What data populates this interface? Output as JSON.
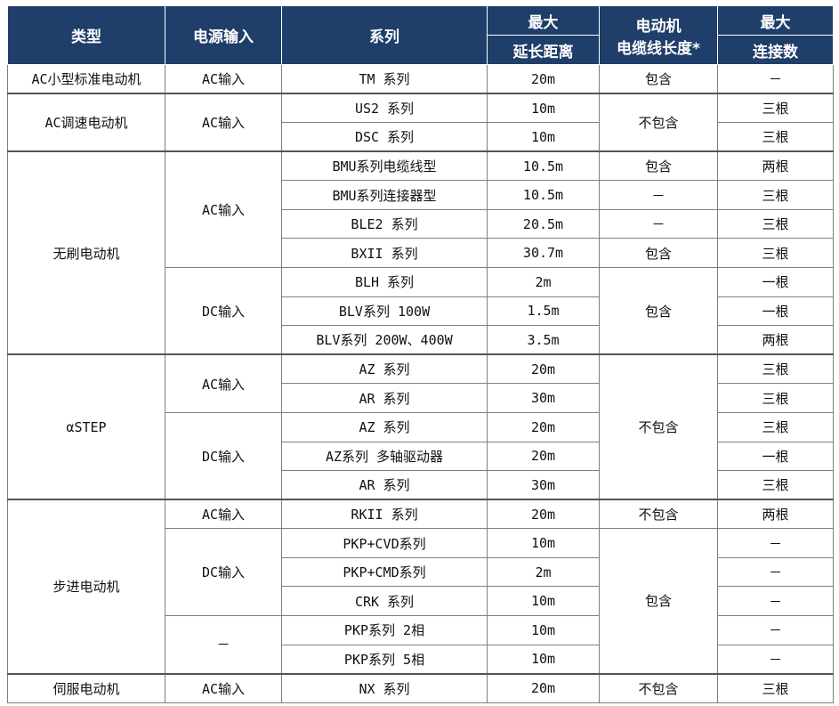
{
  "header": {
    "type": "类型",
    "power_input": "电源输入",
    "series": "系列",
    "max_top": "最大",
    "max_distance": "延长距离",
    "motor_cable_l1": "电动机",
    "motor_cable_l2": "电缆线长度*",
    "max_top2": "最大",
    "max_connections": "连接数"
  },
  "groups": [
    {
      "type": "AC小型标准电动机",
      "inputs": [
        {
          "input": "AC输入",
          "rows": [
            [
              "TM 系列",
              "20m",
              "包含",
              "－"
            ]
          ]
        }
      ]
    },
    {
      "type": "AC调速电动机",
      "inputs": [
        {
          "input": "AC输入",
          "rows": [
            [
              "US2 系列",
              "10m",
              "不包含",
              "三根"
            ],
            [
              "DSC 系列",
              "10m",
              "",
              "三根"
            ]
          ]
        }
      ]
    },
    {
      "type": "无刷电动机",
      "inputs": [
        {
          "input": "AC输入",
          "rows": [
            [
              "BMU系列电缆线型",
              "10.5m",
              "包含",
              "两根"
            ],
            [
              "BMU系列连接器型",
              "10.5m",
              "－",
              "三根"
            ],
            [
              "BLE2 系列",
              "20.5m",
              "－",
              "三根"
            ],
            [
              "BXII 系列",
              "30.7m",
              "包含",
              "三根"
            ]
          ]
        },
        {
          "input": "DC输入",
          "rows": [
            [
              "BLH 系列",
              "2m",
              "包含",
              "一根"
            ],
            [
              "BLV系列 100W",
              "1.5m",
              "",
              "一根"
            ],
            [
              "BLV系列 200W、400W",
              "3.5m",
              "",
              "两根"
            ]
          ]
        }
      ]
    },
    {
      "type": "αSTEP",
      "inputs": [
        {
          "input": "AC输入",
          "rows": [
            [
              "AZ 系列",
              "20m",
              "不包含",
              "三根"
            ],
            [
              "AR 系列",
              "30m",
              "",
              "三根"
            ]
          ]
        },
        {
          "input": "DC输入",
          "rows": [
            [
              "AZ 系列",
              "20m",
              "",
              "三根"
            ],
            [
              "AZ系列 多轴驱动器",
              "20m",
              "",
              "一根"
            ],
            [
              "AR 系列",
              "30m",
              "",
              "三根"
            ]
          ]
        }
      ]
    },
    {
      "type": "步进电动机",
      "inputs": [
        {
          "input": "AC输入",
          "rows": [
            [
              "RKII 系列",
              "20m",
              "不包含",
              "两根"
            ]
          ]
        },
        {
          "input": "DC输入",
          "rows": [
            [
              "PKP+CVD系列",
              "10m",
              "包含",
              "－"
            ],
            [
              "PKP+CMD系列",
              "2m",
              "",
              "－"
            ],
            [
              "CRK 系列",
              "10m",
              "",
              "－"
            ]
          ]
        },
        {
          "input": "－",
          "rows": [
            [
              "PKP系列 2相",
              "10m",
              "",
              "－"
            ],
            [
              "PKP系列 5相",
              "10m",
              "",
              "－"
            ]
          ]
        }
      ]
    },
    {
      "type": "伺服电动机",
      "inputs": [
        {
          "input": "AC输入",
          "rows": [
            [
              "NX 系列",
              "20m",
              "不包含",
              "三根"
            ]
          ]
        }
      ]
    }
  ]
}
